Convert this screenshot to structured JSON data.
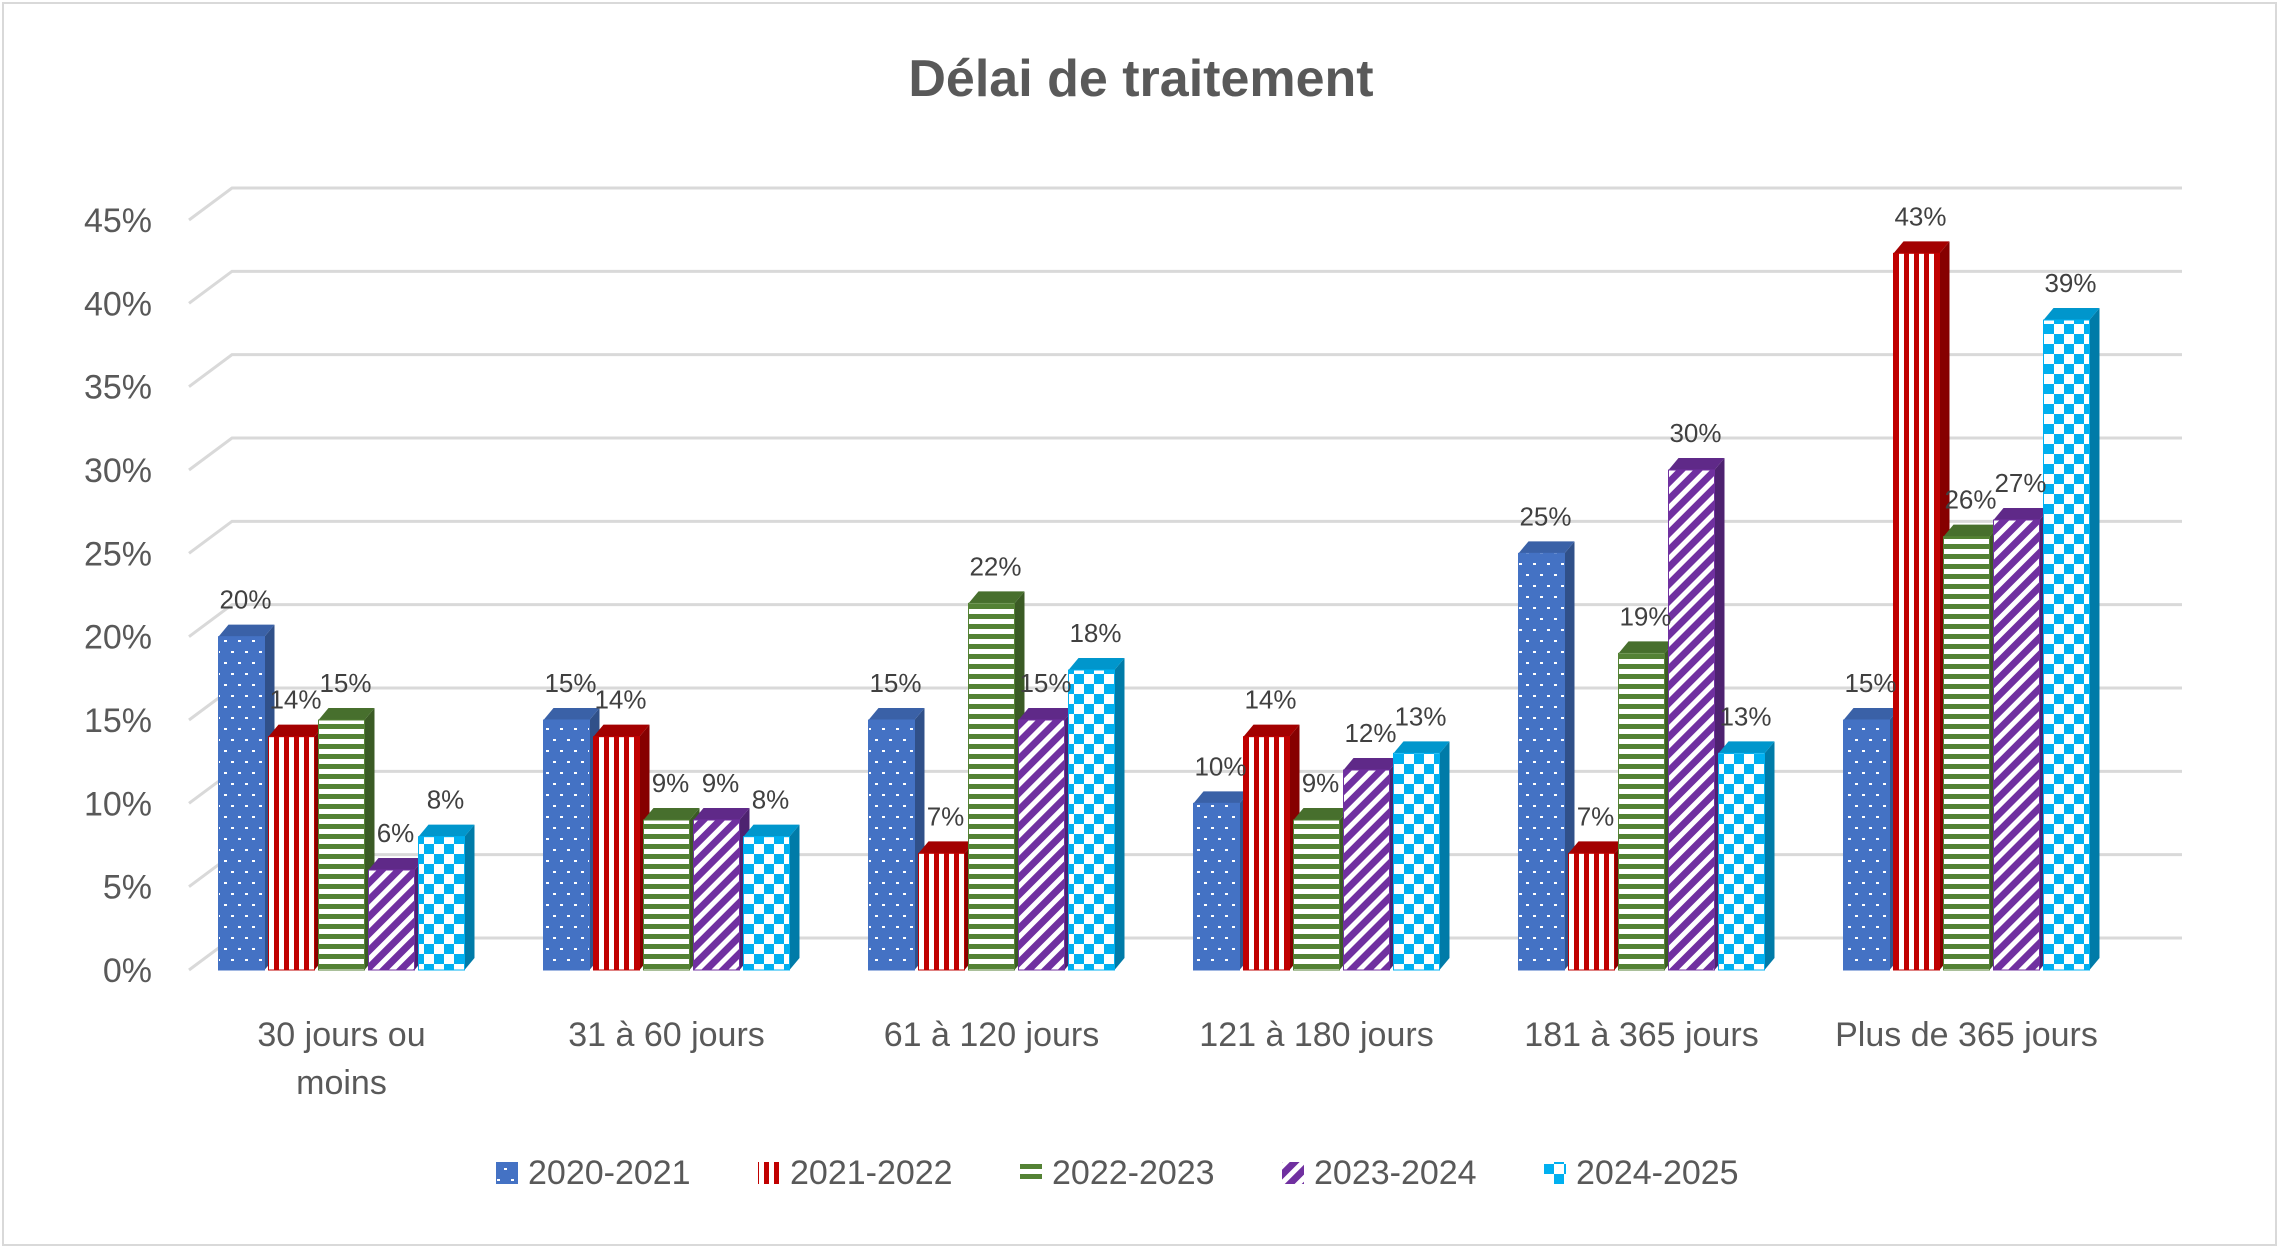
{
  "chart_data": {
    "type": "bar",
    "title": "Délai de traitement",
    "categories": [
      [
        "30 jours ou",
        "moins"
      ],
      [
        "31 à 60 jours"
      ],
      [
        "61 à 120 jours"
      ],
      [
        "121 à 180 jours"
      ],
      [
        "181 à 365 jours"
      ],
      [
        "Plus de 365 jours"
      ]
    ],
    "series": [
      {
        "name": "2020-2021",
        "color": "#4472c4",
        "pattern": "dots",
        "values": [
          20,
          15,
          15,
          10,
          25,
          15
        ]
      },
      {
        "name": "2021-2022",
        "color": "#c00000",
        "pattern": "vertical-stripes",
        "values": [
          14,
          14,
          7,
          14,
          7,
          43
        ]
      },
      {
        "name": "2022-2023",
        "color": "#548235",
        "pattern": "horizontal-stripes",
        "values": [
          15,
          9,
          22,
          9,
          19,
          26
        ]
      },
      {
        "name": "2023-2024",
        "color": "#7030a0",
        "pattern": "diagonal-stripes",
        "values": [
          6,
          9,
          15,
          12,
          30,
          27
        ]
      },
      {
        "name": "2024-2025",
        "color": "#00b0f0",
        "pattern": "checker",
        "values": [
          8,
          8,
          18,
          13,
          13,
          39
        ]
      }
    ],
    "value_suffix": "%",
    "ylim": [
      0,
      45
    ],
    "ytick_step": 5,
    "yticks": [
      "0%",
      "5%",
      "10%",
      "15%",
      "20%",
      "25%",
      "30%",
      "35%",
      "40%",
      "45%"
    ],
    "grid": true,
    "legend": "bottom",
    "style": "3d-clustered-column"
  }
}
